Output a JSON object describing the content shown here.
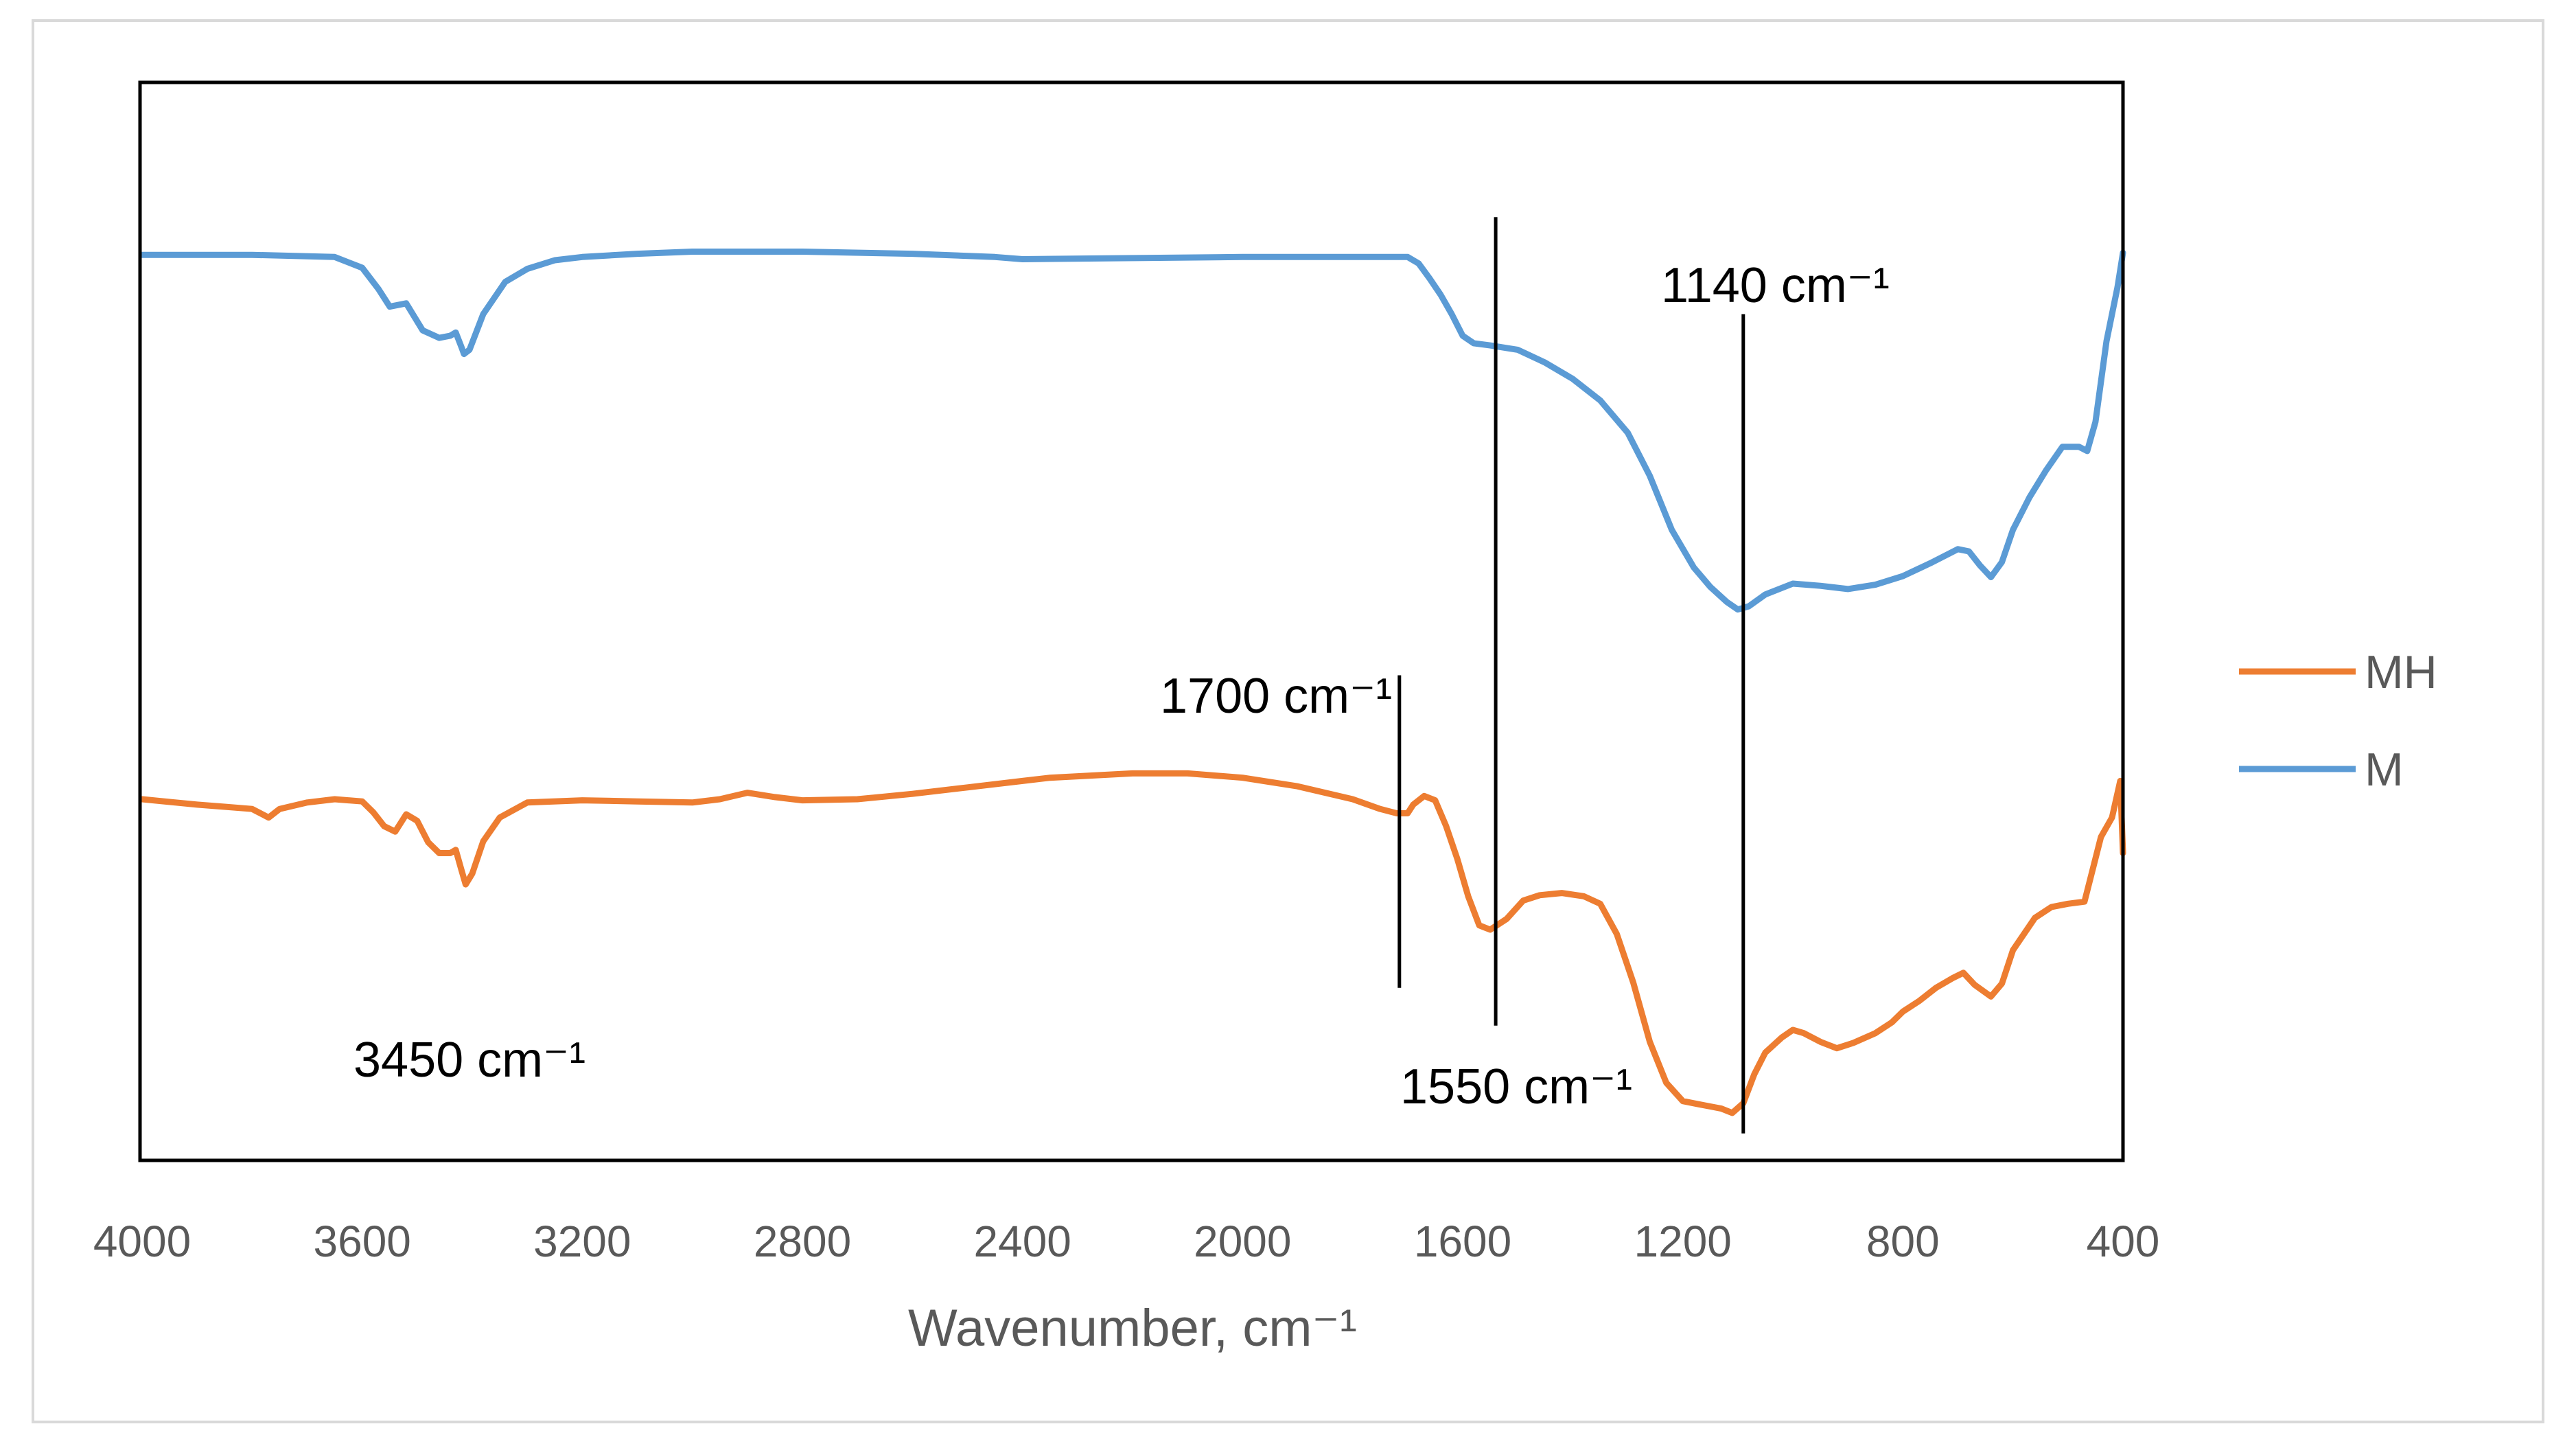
{
  "chart_data": {
    "type": "line",
    "title": "",
    "xlabel": "Wavenumber, cm⁻¹",
    "ylabel": "",
    "xlim": [
      4000,
      400
    ],
    "x_reversed": true,
    "ylim": [
      0,
      100
    ],
    "grid": false,
    "y_axis_visible": false,
    "x_ticks": [
      4000,
      3600,
      3200,
      2800,
      2400,
      2000,
      1600,
      1200,
      800,
      400
    ],
    "x_tick_labels": [
      "4000",
      "3600",
      "3200",
      "2800",
      "2400",
      "2000",
      "1600",
      "1200",
      "800",
      "400"
    ],
    "legend_position": "right",
    "legend": [
      {
        "name": "MH",
        "color": "#ED7D31"
      },
      {
        "name": "M",
        "color": "#5B9BD5"
      }
    ],
    "series": [
      {
        "name": "M",
        "color": "#5B9BD5",
        "points": [
          [
            4000,
            84
          ],
          [
            3800,
            84
          ],
          [
            3650,
            83.8
          ],
          [
            3600,
            82.8
          ],
          [
            3570,
            80.8
          ],
          [
            3550,
            79.2
          ],
          [
            3520,
            79.5
          ],
          [
            3490,
            77
          ],
          [
            3460,
            76.3
          ],
          [
            3440,
            76.5
          ],
          [
            3430,
            76.8
          ],
          [
            3420,
            75.5
          ],
          [
            3415,
            74.8
          ],
          [
            3405,
            75.2
          ],
          [
            3380,
            78.5
          ],
          [
            3340,
            81.5
          ],
          [
            3300,
            82.7
          ],
          [
            3250,
            83.5
          ],
          [
            3200,
            83.8
          ],
          [
            3100,
            84.1
          ],
          [
            3000,
            84.3
          ],
          [
            2800,
            84.3
          ],
          [
            2600,
            84.1
          ],
          [
            2450,
            83.8
          ],
          [
            2400,
            83.6
          ],
          [
            2200,
            83.7
          ],
          [
            2000,
            83.8
          ],
          [
            1800,
            83.8
          ],
          [
            1700,
            83.8
          ],
          [
            1680,
            83.2
          ],
          [
            1660,
            81.8
          ],
          [
            1640,
            80.3
          ],
          [
            1620,
            78.5
          ],
          [
            1600,
            76.5
          ],
          [
            1580,
            75.8
          ],
          [
            1550,
            75.6
          ],
          [
            1500,
            75.2
          ],
          [
            1450,
            74
          ],
          [
            1400,
            72.5
          ],
          [
            1350,
            70.5
          ],
          [
            1300,
            67.5
          ],
          [
            1260,
            63.5
          ],
          [
            1220,
            58.5
          ],
          [
            1180,
            55
          ],
          [
            1150,
            53.2
          ],
          [
            1120,
            51.8
          ],
          [
            1100,
            51.1
          ],
          [
            1080,
            51.4
          ],
          [
            1050,
            52.5
          ],
          [
            1000,
            53.5
          ],
          [
            950,
            53.3
          ],
          [
            900,
            53
          ],
          [
            850,
            53.4
          ],
          [
            800,
            54.2
          ],
          [
            750,
            55.4
          ],
          [
            700,
            56.7
          ],
          [
            680,
            56.5
          ],
          [
            660,
            55.2
          ],
          [
            640,
            54.1
          ],
          [
            620,
            55.5
          ],
          [
            600,
            58.5
          ],
          [
            570,
            61.5
          ],
          [
            540,
            64
          ],
          [
            510,
            66.2
          ],
          [
            480,
            66.2
          ],
          [
            465,
            65.8
          ],
          [
            450,
            68.5
          ],
          [
            430,
            76
          ],
          [
            410,
            81
          ],
          [
            400,
            84.2
          ]
        ]
      },
      {
        "name": "MH",
        "color": "#ED7D31",
        "points": [
          [
            4000,
            33.5
          ],
          [
            3900,
            33
          ],
          [
            3850,
            32.8
          ],
          [
            3800,
            32.6
          ],
          [
            3770,
            31.8
          ],
          [
            3750,
            32.6
          ],
          [
            3700,
            33.2
          ],
          [
            3650,
            33.5
          ],
          [
            3600,
            33.3
          ],
          [
            3580,
            32.3
          ],
          [
            3560,
            31
          ],
          [
            3540,
            30.5
          ],
          [
            3520,
            32.1
          ],
          [
            3500,
            31.5
          ],
          [
            3480,
            29.5
          ],
          [
            3460,
            28.5
          ],
          [
            3440,
            28.5
          ],
          [
            3430,
            28.8
          ],
          [
            3420,
            27
          ],
          [
            3412,
            25.6
          ],
          [
            3400,
            26.6
          ],
          [
            3380,
            29.6
          ],
          [
            3350,
            31.8
          ],
          [
            3300,
            33.2
          ],
          [
            3200,
            33.4
          ],
          [
            3100,
            33.3
          ],
          [
            3000,
            33.2
          ],
          [
            2950,
            33.5
          ],
          [
            2900,
            34.1
          ],
          [
            2850,
            33.7
          ],
          [
            2800,
            33.4
          ],
          [
            2700,
            33.5
          ],
          [
            2600,
            34
          ],
          [
            2500,
            34.6
          ],
          [
            2400,
            35.2
          ],
          [
            2350,
            35.5
          ],
          [
            2200,
            35.9
          ],
          [
            2100,
            35.9
          ],
          [
            2000,
            35.5
          ],
          [
            1900,
            34.7
          ],
          [
            1800,
            33.5
          ],
          [
            1750,
            32.6
          ],
          [
            1720,
            32.2
          ],
          [
            1700,
            32.2
          ],
          [
            1690,
            33
          ],
          [
            1670,
            33.8
          ],
          [
            1650,
            33.4
          ],
          [
            1630,
            31
          ],
          [
            1610,
            28
          ],
          [
            1590,
            24.5
          ],
          [
            1570,
            21.8
          ],
          [
            1550,
            21.4
          ],
          [
            1520,
            22.4
          ],
          [
            1490,
            24.1
          ],
          [
            1460,
            24.6
          ],
          [
            1420,
            24.8
          ],
          [
            1380,
            24.5
          ],
          [
            1350,
            23.8
          ],
          [
            1320,
            21
          ],
          [
            1290,
            16.5
          ],
          [
            1260,
            11
          ],
          [
            1230,
            7.2
          ],
          [
            1200,
            5.5
          ],
          [
            1170,
            5.2
          ],
          [
            1150,
            5
          ],
          [
            1130,
            4.8
          ],
          [
            1110,
            4.4
          ],
          [
            1090,
            5.3
          ],
          [
            1070,
            8
          ],
          [
            1050,
            10
          ],
          [
            1020,
            11.4
          ],
          [
            1000,
            12.1
          ],
          [
            980,
            11.8
          ],
          [
            950,
            11
          ],
          [
            920,
            10.4
          ],
          [
            890,
            10.9
          ],
          [
            850,
            11.8
          ],
          [
            820,
            12.8
          ],
          [
            800,
            13.8
          ],
          [
            770,
            14.8
          ],
          [
            740,
            16
          ],
          [
            710,
            16.9
          ],
          [
            690,
            17.4
          ],
          [
            670,
            16.3
          ],
          [
            640,
            15.2
          ],
          [
            620,
            16.4
          ],
          [
            600,
            19.5
          ],
          [
            560,
            22.5
          ],
          [
            530,
            23.5
          ],
          [
            500,
            23.8
          ],
          [
            470,
            24
          ],
          [
            455,
            27
          ],
          [
            440,
            30
          ],
          [
            420,
            31.8
          ],
          [
            405,
            35.2
          ],
          [
            400,
            28.5
          ]
        ]
      }
    ],
    "annotations": [
      {
        "text": "1140 cm⁻¹",
        "line_x": 1090,
        "line_y": [
          2.5,
          78.5
        ]
      },
      {
        "text": "1700 cm⁻¹",
        "line_x": 1715,
        "line_y": [
          16,
          45
        ]
      },
      {
        "text": "1550 cm⁻¹",
        "line_x": 1540,
        "line_y": [
          12.5,
          87.5
        ]
      },
      {
        "text": "3450 cm⁻¹"
      }
    ]
  }
}
